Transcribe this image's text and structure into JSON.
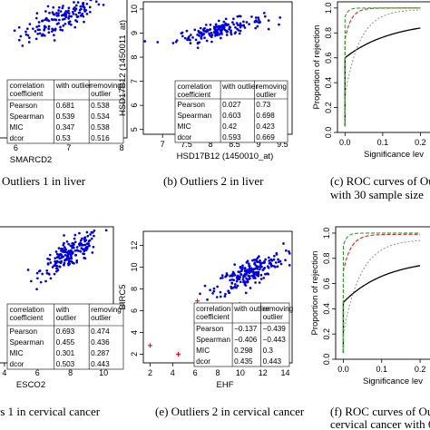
{
  "captions": {
    "p1": "Outliers 1 in liver",
    "p2": "(b) Outliers 2 in liver",
    "p3a": "(c) ROC curves of Out",
    "p3b": "with 30 sample size",
    "p4": "rs 1 in cervical cancer",
    "p5": "(e) Outliers 2 in cervical cancer",
    "p6a": "(f) ROC curves of Ou",
    "p6b": "cervical cancer with 60"
  },
  "colors": {
    "points": "#0000dd",
    "outlier": "#dd0000",
    "roc_green": "#2ca02c",
    "roc_red": "#dd2222",
    "roc_gray": "#999999"
  },
  "chart_data": [
    {
      "id": "p1",
      "type": "scatter",
      "xlabel": "SMARCD2",
      "ylabel": "",
      "xlim": [
        5.6,
        8.1
      ],
      "ylim": [
        0,
        10
      ],
      "x_ticks": [
        6,
        7,
        8
      ],
      "cloud": {
        "center_x": 6.85,
        "center_y": 8.2,
        "spread_x": 0.38,
        "spread_y": 0.9,
        "count": 150
      },
      "table": {
        "header": [
          "correlation coefficient",
          "with outlier",
          "removing outlier"
        ],
        "rows": [
          [
            "Pearson",
            "0.681",
            "0.538"
          ],
          [
            "Spearman",
            "0.539",
            "0.534"
          ],
          [
            "MIC",
            "0.347",
            "0.538"
          ],
          [
            "dcor",
            "0.53",
            "0.516"
          ]
        ]
      }
    },
    {
      "id": "p2",
      "type": "scatter",
      "xlabel": "HSD17B12 (1450010_at)",
      "ylabel": "HSD17B12 (1450011_at)",
      "xlim": [
        6.6,
        9.7
      ],
      "ylim": [
        4.8,
        10.3
      ],
      "x_ticks": [
        7.0,
        7.5,
        8.0,
        8.5,
        9.0,
        9.5
      ],
      "y_ticks": [
        5,
        6,
        7,
        8,
        9,
        10
      ],
      "cloud": {
        "center_x": 8.2,
        "center_y": 9.15,
        "spread_x": 0.45,
        "spread_y": 0.3,
        "count": 170
      },
      "outliers": [
        [
          9.05,
          5.55
        ],
        [
          9.25,
          5.8
        ],
        [
          9.35,
          5.35
        ],
        [
          9.5,
          6.2
        ],
        [
          9.55,
          4.95
        ]
      ],
      "table": {
        "header": [
          "correlation coefficient",
          "with outlier",
          "removing outlier"
        ],
        "rows": [
          [
            "Pearson",
            "0.027",
            "0.73"
          ],
          [
            "Spearman",
            "0.603",
            "0.698"
          ],
          [
            "MIC",
            "0.42",
            "0.423"
          ],
          [
            "dcor",
            "0.593",
            "0.669"
          ]
        ]
      }
    },
    {
      "id": "p3",
      "type": "line",
      "xlabel": "Significance lev",
      "ylabel": "Proportion of rejection",
      "xlim": [
        -0.02,
        0.24
      ],
      "ylim": [
        0,
        1.05
      ],
      "x_ticks": [
        0.0,
        0.1,
        0.2
      ],
      "y_ticks": [
        0.0,
        0.2,
        0.4,
        0.6,
        0.8,
        1.0
      ],
      "series": [
        {
          "color": "#000000",
          "dash": "",
          "start": 0.6,
          "end": 0.9,
          "speed": 8
        },
        {
          "color": "#999999",
          "dash": "2,2",
          "start": 0.3,
          "end": 0.99,
          "speed": 25
        },
        {
          "color": "#dd2222",
          "dash": "4,2",
          "start": 0.75,
          "end": 1.0,
          "speed": 60
        },
        {
          "color": "#2ca02c",
          "dash": "4,2",
          "start": 0.93,
          "end": 1.0,
          "speed": 120
        }
      ]
    },
    {
      "id": "p4",
      "type": "scatter",
      "xlabel": "ESCO2",
      "ylabel": "",
      "xlim": [
        3.4,
        10.6
      ],
      "ylim": [
        0,
        10
      ],
      "x_ticks": [
        4,
        6,
        8,
        10
      ],
      "cloud": {
        "center_x": 8.0,
        "center_y": 8.0,
        "spread_x": 0.9,
        "spread_y": 0.9,
        "count": 190
      },
      "table": {
        "header": [
          "correlation coefficient",
          "with outlier",
          "removing outlier"
        ],
        "rows": [
          [
            "Pearson",
            "0.693",
            "0.474"
          ],
          [
            "Spearman",
            "0.455",
            "0.436"
          ],
          [
            "MIC",
            "0.301",
            "0.287"
          ],
          [
            "dcor",
            "0.503",
            "0.443"
          ]
        ]
      }
    },
    {
      "id": "p5",
      "type": "scatter",
      "xlabel": "EHF",
      "ylabel": "BIRC5",
      "xlim": [
        1.4,
        14.6
      ],
      "ylim": [
        1.2,
        13.3
      ],
      "x_ticks": [
        2,
        4,
        6,
        8,
        10,
        12,
        14
      ],
      "y_ticks": [
        2,
        4,
        6,
        8,
        10,
        12
      ],
      "cloud": {
        "center_x": 10.8,
        "center_y": 9.5,
        "spread_x": 1.5,
        "spread_y": 1.1,
        "count": 220
      },
      "outliers": [
        [
          2.0,
          2.8
        ],
        [
          4.5,
          2.0
        ],
        [
          6.2,
          6.9
        ]
      ],
      "table": {
        "header": [
          "correlation coefficient",
          "with outlier",
          "removing outlier"
        ],
        "rows": [
          [
            "Pearson",
            "−0.137",
            "−0.439"
          ],
          [
            "Spearman",
            "−0.406",
            "−0.443"
          ],
          [
            "MIC",
            "0.298",
            "0.3"
          ],
          [
            "dcor",
            "0.435",
            "0.443"
          ]
        ]
      }
    },
    {
      "id": "p6",
      "type": "line",
      "xlabel": "Significance lev",
      "ylabel": "Proportion of rejection",
      "xlim": [
        -0.02,
        0.24
      ],
      "ylim": [
        0,
        1.05
      ],
      "x_ticks": [
        0.0,
        0.1,
        0.2
      ],
      "y_ticks": [
        0.0,
        0.2,
        0.4,
        0.6,
        0.8,
        1.0
      ],
      "series": [
        {
          "color": "#000000",
          "dash": "",
          "start": 0.45,
          "end": 0.8,
          "speed": 9
        },
        {
          "color": "#999999",
          "dash": "2,2",
          "start": 0.2,
          "end": 0.95,
          "speed": 22
        },
        {
          "color": "#dd2222",
          "dash": "4,2",
          "start": 0.7,
          "end": 0.99,
          "speed": 50
        },
        {
          "color": "#2ca02c",
          "dash": "4,2",
          "start": 0.9,
          "end": 1.0,
          "speed": 110
        }
      ]
    }
  ]
}
